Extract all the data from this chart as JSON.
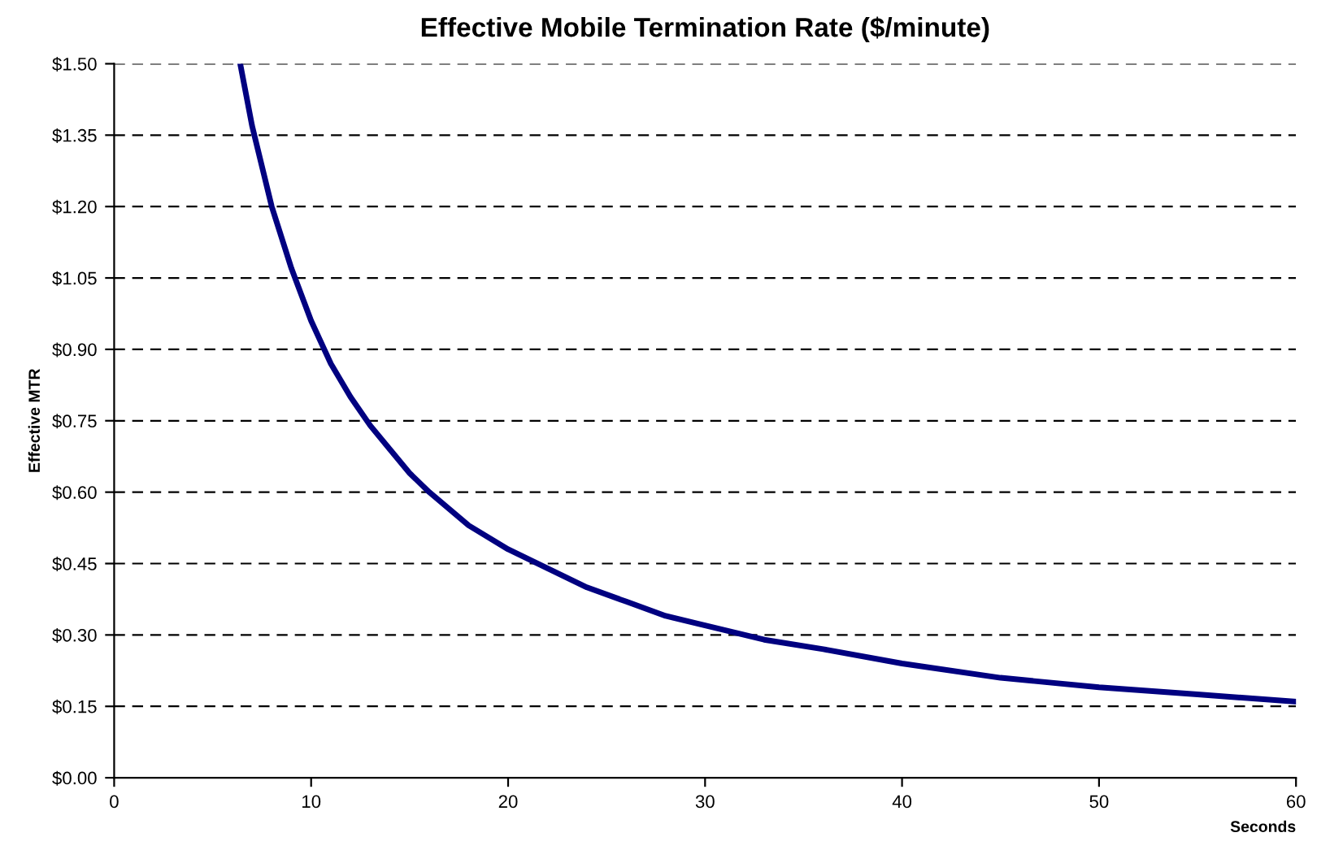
{
  "chart_data": {
    "type": "line",
    "title": "Effective Mobile Termination Rate ($/minute)",
    "xlabel": "Seconds",
    "ylabel": "Effective MTR",
    "x": [
      6.4,
      7,
      8,
      9,
      10,
      11,
      12,
      13,
      14,
      15,
      16,
      18,
      20,
      22,
      24,
      26,
      28,
      30,
      33,
      36,
      40,
      45,
      50,
      55,
      60
    ],
    "series": [
      {
        "color": "#000080",
        "values": [
          1.5,
          1.37,
          1.2,
          1.07,
          0.96,
          0.87,
          0.8,
          0.74,
          0.69,
          0.64,
          0.6,
          0.53,
          0.48,
          0.44,
          0.4,
          0.37,
          0.34,
          0.32,
          0.29,
          0.27,
          0.24,
          0.21,
          0.19,
          0.175,
          0.16
        ]
      }
    ],
    "xlim": [
      0,
      60
    ],
    "xticks": [
      0,
      10,
      20,
      30,
      40,
      50,
      60
    ],
    "ylim": [
      0,
      1.5
    ],
    "yticks": [
      {
        "value": 0,
        "label": "$0.00"
      },
      {
        "value": 0.15,
        "label": "$0.15"
      },
      {
        "value": 0.3,
        "label": "$0.30"
      },
      {
        "value": 0.45,
        "label": "$0.45"
      },
      {
        "value": 0.6,
        "label": "$0.60"
      },
      {
        "value": 0.75,
        "label": "$0.75"
      },
      {
        "value": 0.9,
        "label": "$0.90"
      },
      {
        "value": 1.05,
        "label": "$1.05"
      },
      {
        "value": 1.2,
        "label": "$1.20"
      },
      {
        "value": 1.35,
        "label": "$1.35"
      },
      {
        "value": 1.5,
        "label": "$1.50"
      }
    ],
    "grid": "y",
    "marker": "none",
    "line_style": "solid"
  }
}
